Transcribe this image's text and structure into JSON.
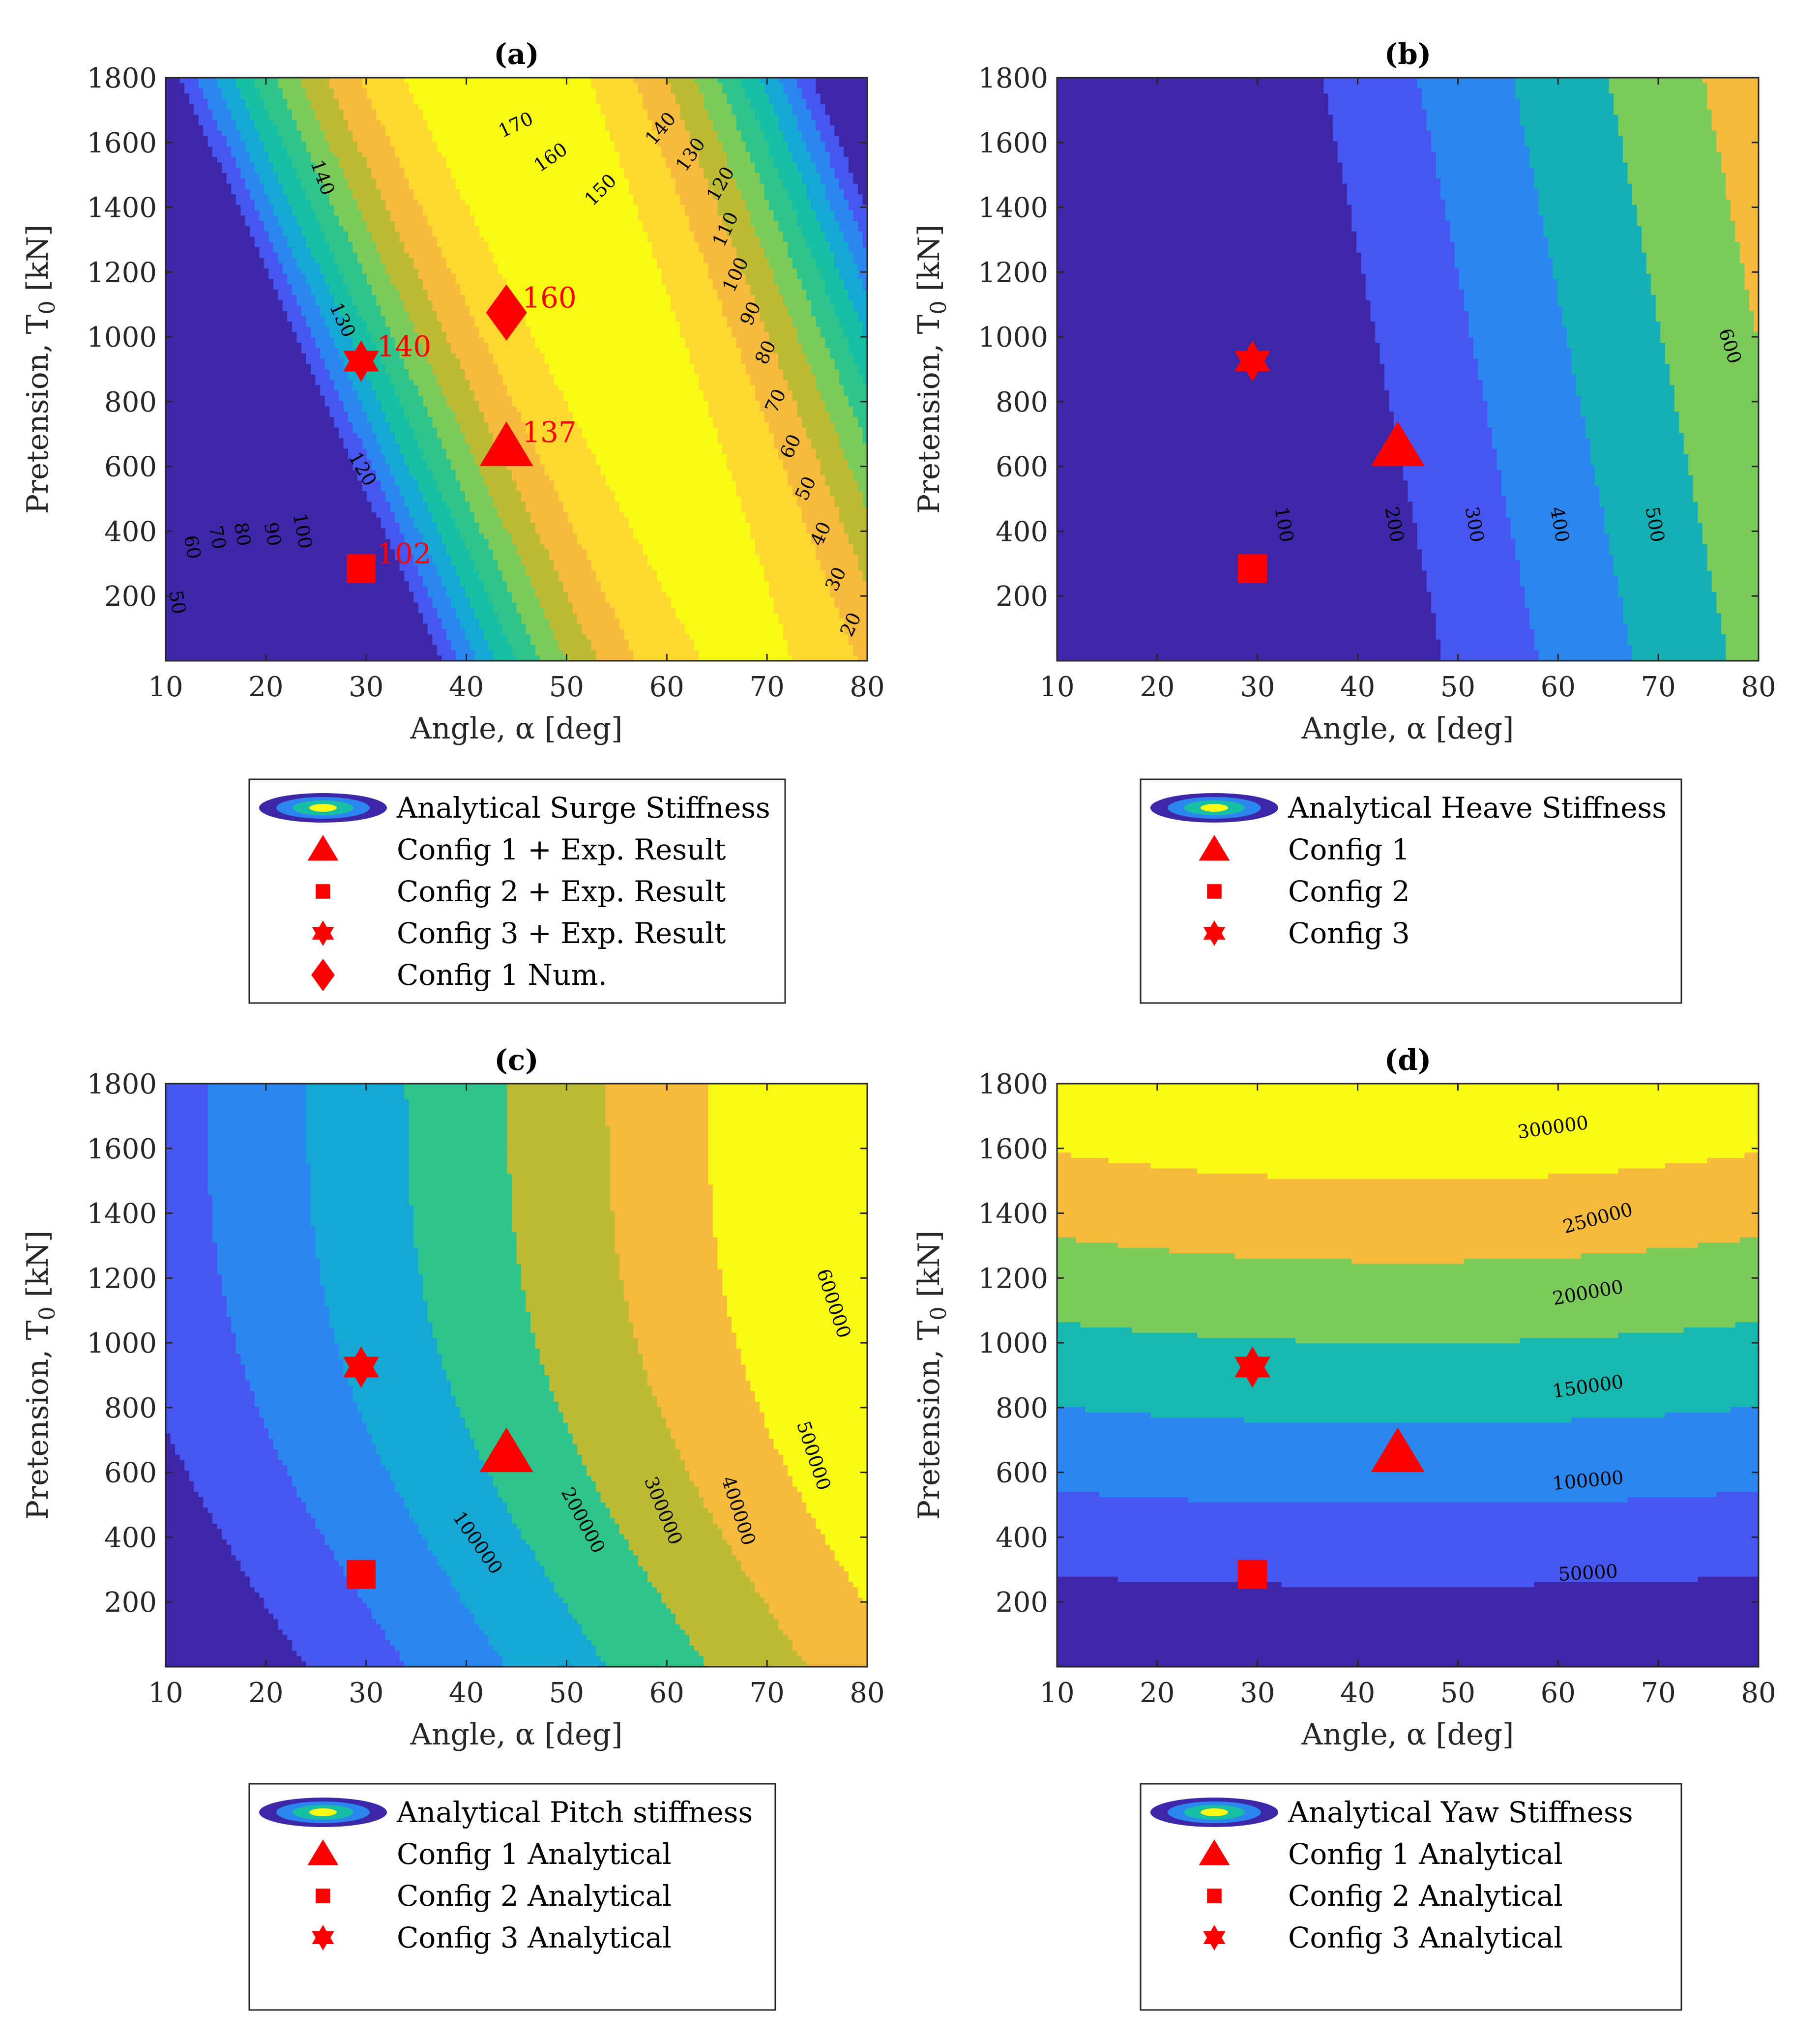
{
  "figure": {
    "x_axis_label": "Angle, α [deg]",
    "y_axis_label_main": "Pretension, T",
    "y_axis_label_sub": "0",
    "y_axis_label_unit": " [kN]",
    "colormap": [
      "#3e26a8",
      "#4656f0",
      "#2b86f0",
      "#15a8d4",
      "#17bfa4",
      "#2ec48c",
      "#7bcb5a",
      "#bdbb33",
      "#f6ba3c",
      "#fdd92f",
      "#f9fa14"
    ],
    "marker_color": "#ff0000"
  },
  "chart_data": [
    {
      "type": "contour",
      "id": "a",
      "title": "(a)",
      "xlim": [
        10,
        80
      ],
      "ylim": [
        0,
        1800
      ],
      "xticks": [
        10,
        20,
        30,
        40,
        50,
        60,
        70,
        80
      ],
      "yticks": [
        200,
        400,
        600,
        800,
        1000,
        1200,
        1400,
        1600,
        1800
      ],
      "levels": [
        20,
        30,
        40,
        50,
        60,
        70,
        80,
        90,
        100,
        110,
        120,
        130,
        140,
        150,
        160,
        170
      ],
      "contour_labels": [
        {
          "text": "170",
          "x": 45,
          "y": 1650,
          "rot": -25
        },
        {
          "text": "160",
          "x": 48.5,
          "y": 1550,
          "rot": -35
        },
        {
          "text": "150",
          "x": 53.5,
          "y": 1450,
          "rot": -45
        },
        {
          "text": "140",
          "x": 25.5,
          "y": 1490,
          "rot": 70
        },
        {
          "text": "140",
          "x": 59.5,
          "y": 1640,
          "rot": -50
        },
        {
          "text": "130",
          "x": 62.5,
          "y": 1560,
          "rot": -55
        },
        {
          "text": "120",
          "x": 65.5,
          "y": 1470,
          "rot": -60
        },
        {
          "text": "130",
          "x": 27.5,
          "y": 1050,
          "rot": 65
        },
        {
          "text": "110",
          "x": 66,
          "y": 1330,
          "rot": -65
        },
        {
          "text": "100",
          "x": 67,
          "y": 1190,
          "rot": -65
        },
        {
          "text": "90",
          "x": 68.5,
          "y": 1070,
          "rot": -65
        },
        {
          "text": "80",
          "x": 70,
          "y": 950,
          "rot": -65
        },
        {
          "text": "120",
          "x": 29.5,
          "y": 590,
          "rot": 60
        },
        {
          "text": "70",
          "x": 71,
          "y": 800,
          "rot": -65
        },
        {
          "text": "60",
          "x": 72.5,
          "y": 660,
          "rot": -65
        },
        {
          "text": "50",
          "x": 74,
          "y": 530,
          "rot": -65
        },
        {
          "text": "40",
          "x": 75.5,
          "y": 390,
          "rot": -65
        },
        {
          "text": "30",
          "x": 77,
          "y": 250,
          "rot": -65
        },
        {
          "text": "20",
          "x": 78.5,
          "y": 110,
          "rot": -65
        },
        {
          "text": "100",
          "x": 23.5,
          "y": 400,
          "rot": 80
        },
        {
          "text": "90",
          "x": 20.5,
          "y": 390,
          "rot": 80
        },
        {
          "text": "80",
          "x": 17.5,
          "y": 390,
          "rot": 80
        },
        {
          "text": "70",
          "x": 15,
          "y": 380,
          "rot": 80
        },
        {
          "text": "60",
          "x": 12.5,
          "y": 350,
          "rot": 80
        },
        {
          "text": "50",
          "x": 11,
          "y": 180,
          "rot": 80
        }
      ],
      "markers": [
        {
          "shape": "triangle",
          "x": 44,
          "y": 660,
          "label": "137"
        },
        {
          "shape": "square",
          "x": 29.5,
          "y": 285,
          "label": "102"
        },
        {
          "shape": "hexagram",
          "x": 29.5,
          "y": 925,
          "label": "140"
        },
        {
          "shape": "diamond",
          "x": 44,
          "y": 1075,
          "label": "160"
        }
      ],
      "legend": [
        {
          "marker": "contour",
          "text": "Analytical Surge Stiffness"
        },
        {
          "marker": "triangle",
          "text": "Config 1 + Exp. Result"
        },
        {
          "marker": "square",
          "text": "Config 2 + Exp. Result"
        },
        {
          "marker": "hexagram",
          "text": "Config 3 + Exp. Result"
        },
        {
          "marker": "diamond",
          "text": "Config 1 Num."
        }
      ]
    },
    {
      "type": "contour",
      "id": "b",
      "title": "(b)",
      "xlim": [
        10,
        80
      ],
      "ylim": [
        0,
        1800
      ],
      "xticks": [
        10,
        20,
        30,
        40,
        50,
        60,
        70,
        80
      ],
      "yticks": [
        200,
        400,
        600,
        800,
        1000,
        1200,
        1400,
        1600,
        1800
      ],
      "levels": [
        100,
        200,
        300,
        400,
        500,
        600
      ],
      "contour_labels": [
        {
          "text": "100",
          "x": 32.5,
          "y": 420,
          "rot": 80
        },
        {
          "text": "200",
          "x": 43.5,
          "y": 420,
          "rot": 80
        },
        {
          "text": "300",
          "x": 51.5,
          "y": 420,
          "rot": 80
        },
        {
          "text": "400",
          "x": 60,
          "y": 420,
          "rot": 80
        },
        {
          "text": "500",
          "x": 69.5,
          "y": 420,
          "rot": 80
        },
        {
          "text": "600",
          "x": 77,
          "y": 970,
          "rot": 72
        }
      ],
      "markers": [
        {
          "shape": "triangle",
          "x": 44,
          "y": 660,
          "label": ""
        },
        {
          "shape": "square",
          "x": 29.5,
          "y": 285,
          "label": ""
        },
        {
          "shape": "hexagram",
          "x": 29.5,
          "y": 925,
          "label": ""
        }
      ],
      "legend": [
        {
          "marker": "contour",
          "text": "Analytical Heave Stiffness"
        },
        {
          "marker": "triangle",
          "text": "Config 1"
        },
        {
          "marker": "square",
          "text": "Config 2"
        },
        {
          "marker": "hexagram",
          "text": "Config 3"
        }
      ]
    },
    {
      "type": "contour",
      "id": "c",
      "title": "(c)",
      "xlim": [
        10,
        80
      ],
      "ylim": [
        0,
        1800
      ],
      "xticks": [
        10,
        20,
        30,
        40,
        50,
        60,
        70,
        80
      ],
      "yticks": [
        200,
        400,
        600,
        800,
        1000,
        1200,
        1400,
        1600,
        1800
      ],
      "levels": [
        100000,
        200000,
        300000,
        400000,
        500000,
        600000
      ],
      "contour_labels": [
        {
          "text": "100000",
          "x": 41,
          "y": 380,
          "rot": 55
        },
        {
          "text": "200000",
          "x": 51.5,
          "y": 450,
          "rot": 62
        },
        {
          "text": "300000",
          "x": 59.5,
          "y": 480,
          "rot": 68
        },
        {
          "text": "400000",
          "x": 67,
          "y": 480,
          "rot": 72
        },
        {
          "text": "500000",
          "x": 74.5,
          "y": 650,
          "rot": 72
        },
        {
          "text": "600000",
          "x": 76.5,
          "y": 1120,
          "rot": 72
        }
      ],
      "markers": [
        {
          "shape": "triangle",
          "x": 44,
          "y": 660,
          "label": ""
        },
        {
          "shape": "square",
          "x": 29.5,
          "y": 285,
          "label": ""
        },
        {
          "shape": "hexagram",
          "x": 29.5,
          "y": 925,
          "label": ""
        }
      ],
      "legend": [
        {
          "marker": "contour",
          "text": "Analytical Pitch stiffness"
        },
        {
          "marker": "triangle",
          "text": "Config 1 Analytical"
        },
        {
          "marker": "square",
          "text": "Config 2 Analytical"
        },
        {
          "marker": "hexagram",
          "text": "Config 3 Analytical"
        }
      ]
    },
    {
      "type": "contour",
      "id": "d",
      "title": "(d)",
      "xlim": [
        10,
        80
      ],
      "ylim": [
        0,
        1800
      ],
      "xticks": [
        10,
        20,
        30,
        40,
        50,
        60,
        70,
        80
      ],
      "yticks": [
        200,
        400,
        600,
        800,
        1000,
        1200,
        1400,
        1600,
        1800
      ],
      "levels": [
        50000,
        100000,
        150000,
        200000,
        250000,
        300000
      ],
      "contour_labels": [
        {
          "text": "300000",
          "x": 59.5,
          "y": 1660,
          "rot": -8
        },
        {
          "text": "250000",
          "x": 64,
          "y": 1380,
          "rot": -15
        },
        {
          "text": "200000",
          "x": 63,
          "y": 1150,
          "rot": -10
        },
        {
          "text": "150000",
          "x": 63,
          "y": 860,
          "rot": -8
        },
        {
          "text": "100000",
          "x": 63,
          "y": 570,
          "rot": -5
        },
        {
          "text": "50000",
          "x": 63,
          "y": 285,
          "rot": -3
        }
      ],
      "markers": [
        {
          "shape": "triangle",
          "x": 44,
          "y": 660,
          "label": ""
        },
        {
          "shape": "square",
          "x": 29.5,
          "y": 285,
          "label": ""
        },
        {
          "shape": "hexagram",
          "x": 29.5,
          "y": 925,
          "label": ""
        }
      ],
      "legend": [
        {
          "marker": "contour",
          "text": "Analytical Yaw Stiffness"
        },
        {
          "marker": "triangle",
          "text": "Config 1 Analytical"
        },
        {
          "marker": "square",
          "text": "Config 2 Analytical"
        },
        {
          "marker": "hexagram",
          "text": "Config 3 Analytical"
        }
      ]
    }
  ]
}
